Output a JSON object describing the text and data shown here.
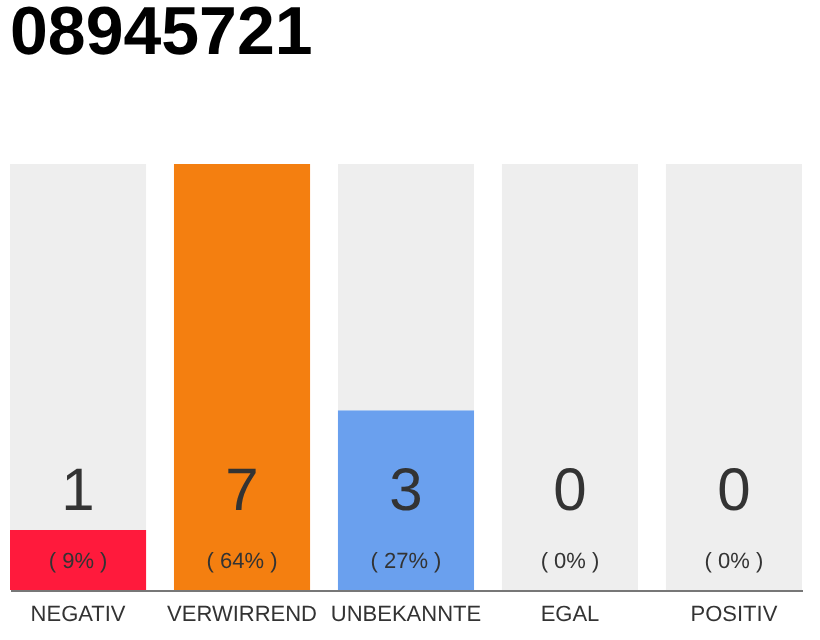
{
  "chart_data": {
    "type": "bar",
    "title": "08945721",
    "stacked": true,
    "categories": [
      "NEGATIV",
      "VERWIRREND",
      "UNBEKANNTE",
      "EGAL",
      "POSITIV"
    ],
    "series": [
      {
        "colors": [
          "#ff1a3c",
          "#f47f10",
          "#6aa0ee",
          "#cccccc",
          "#cccccc"
        ],
        "values": [
          9,
          64,
          27,
          0,
          0
        ],
        "value_labels": [
          "( 9% )",
          "( 64% )",
          "( 27% )",
          null,
          null
        ]
      },
      {
        "color": "#eeeeee",
        "values": [
          55,
          0,
          37,
          64,
          64
        ]
      }
    ],
    "annotations": [
      {
        "text": "1",
        "x": "NEGATIV",
        "y": 0
      },
      {
        "text": "7",
        "x": "VERWIRREND",
        "y": 0
      },
      {
        "text": "3",
        "x": "UNBEKANNTE",
        "y": 0
      },
      {
        "text": "0",
        "x": "EGAL",
        "y": 0
      },
      {
        "text": "0",
        "x": "POSITIV",
        "y": 0
      },
      {
        "text": "( 0% )",
        "x": "EGAL",
        "y": 0
      },
      {
        "text": "( 0% )",
        "x": "POSITIV",
        "y": 0
      }
    ],
    "ylim": [
      0,
      64
    ],
    "tick_labels": "x",
    "grid": false
  }
}
